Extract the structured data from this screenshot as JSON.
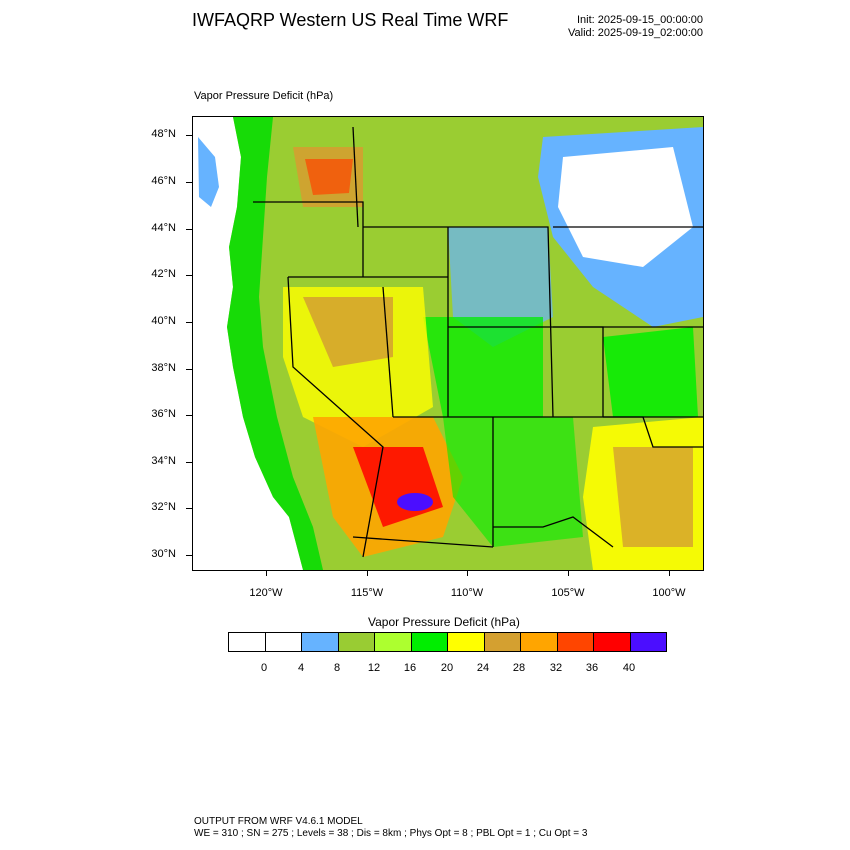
{
  "header": {
    "title": "IWFAQRP Western US Real Time WRF",
    "init": "Init: 2025-09-15_00:00:00",
    "valid": "Valid: 2025-09-19_02:00:00"
  },
  "plot": {
    "subtitle": "Vapor Pressure Deficit   (hPa)",
    "lat_labels": [
      "48°N",
      "46°N",
      "44°N",
      "42°N",
      "40°N",
      "38°N",
      "36°N",
      "34°N",
      "32°N",
      "30°N"
    ],
    "lon_labels": [
      "120°W",
      "115°W",
      "110°W",
      "105°W",
      "100°W"
    ]
  },
  "colorbar": {
    "title": "Vapor Pressure Deficit  (hPa)",
    "colors": [
      "#ffffff",
      "#ffffff",
      "#66b3ff",
      "#99cc33",
      "#adff2f",
      "#00ee00",
      "#ffff00",
      "#d4a030",
      "#ffa500",
      "#ff4500",
      "#ff0000",
      "#4b0eff"
    ],
    "labels": [
      "0",
      "4",
      "8",
      "12",
      "16",
      "20",
      "24",
      "28",
      "32",
      "36",
      "40"
    ]
  },
  "footer": {
    "line1": "OUTPUT FROM WRF V4.6.1 MODEL",
    "line2": "WE = 310 ; SN = 275 ; Levels = 38 ; Dis = 8km ; Phys Opt = 8 ; PBL Opt = 1 ; Cu Opt = 3"
  }
}
